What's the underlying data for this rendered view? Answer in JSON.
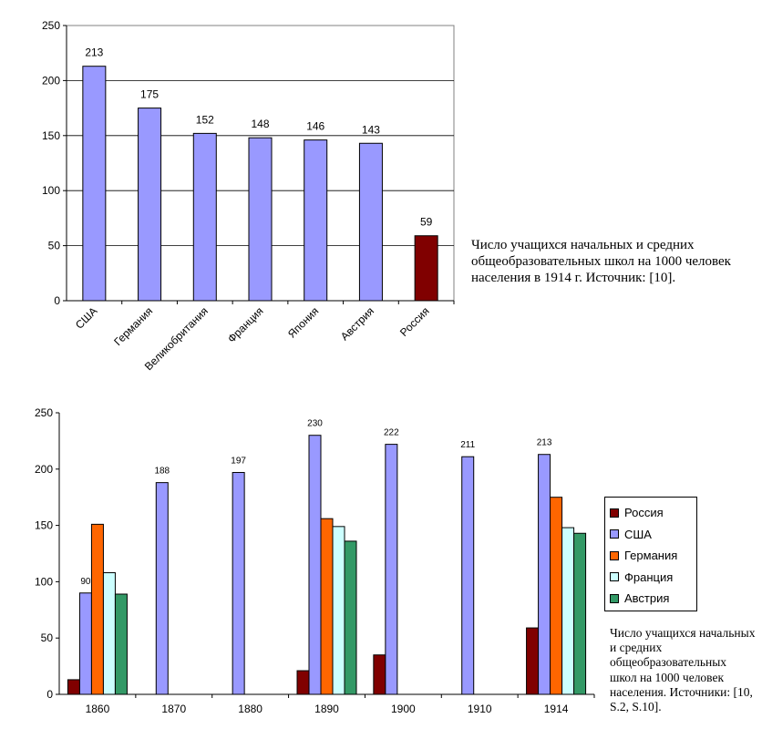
{
  "chart_data": [
    {
      "type": "bar",
      "title": "",
      "xlabel": "",
      "ylabel": "",
      "ylim": [
        0,
        250
      ],
      "yticks": [
        0,
        50,
        100,
        150,
        200,
        250
      ],
      "categories": [
        "США",
        "Германия",
        "Великобритания",
        "Франция",
        "Япония",
        "Австрия",
        "Россия"
      ],
      "values": [
        213,
        175,
        152,
        148,
        146,
        143,
        59
      ],
      "data_labels": [
        "213",
        "175",
        "152",
        "148",
        "146",
        "143",
        "59"
      ],
      "colors": [
        "#9999ff",
        "#9999ff",
        "#9999ff",
        "#9999ff",
        "#9999ff",
        "#9999ff",
        "#800000"
      ],
      "grid": true,
      "legend": "none"
    },
    {
      "type": "bar",
      "title": "",
      "xlabel": "",
      "ylabel": "",
      "ylim": [
        0,
        250
      ],
      "yticks": [
        0,
        50,
        100,
        150,
        200,
        250
      ],
      "categories": [
        "1860",
        "1870",
        "1880",
        "1890",
        "1900",
        "1910",
        "1914"
      ],
      "series": [
        {
          "name": "Россия",
          "color": "#800000",
          "values": [
            13,
            null,
            null,
            21,
            35,
            null,
            59
          ]
        },
        {
          "name": "США",
          "color": "#9999ff",
          "values": [
            90,
            188,
            197,
            230,
            222,
            211,
            213
          ]
        },
        {
          "name": "Германия",
          "color": "#ff6600",
          "values": [
            151,
            null,
            null,
            156,
            null,
            null,
            175
          ]
        },
        {
          "name": "Франция",
          "color": "#ccffff",
          "values": [
            108,
            null,
            null,
            149,
            null,
            null,
            148
          ]
        },
        {
          "name": "Австрия",
          "color": "#339966",
          "values": [
            89,
            null,
            null,
            136,
            null,
            null,
            143
          ]
        }
      ],
      "data_labels": {
        "series": "США",
        "labels": [
          "90",
          "188",
          "197",
          "230",
          "222",
          "211",
          "213"
        ]
      },
      "grid": false,
      "legend": "right"
    }
  ],
  "captions": {
    "chart1": "Число учащихся начальных и средних общеобразовательных школ на 1000 человек населения в 1914 г. Источник: [10].",
    "chart2": "Число учащихся начальных и средних общеобразовательных школ на 1000 человек населения. Источники: [10, S.2, S.10]."
  }
}
